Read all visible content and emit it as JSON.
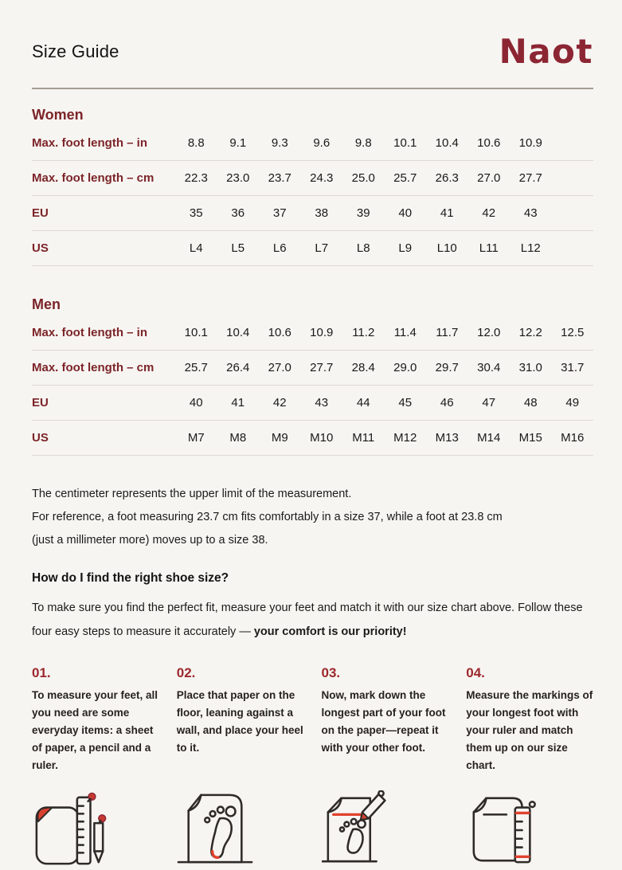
{
  "colors": {
    "background": "#f7f5f2",
    "brand_maroon": "#8c2633",
    "label_maroon": "#7c2428",
    "step_number_red": "#9c282c",
    "icon_accent_red": "#d8402f",
    "row_divider": "#ddd8d2"
  },
  "header": {
    "title": "Size Guide",
    "logo": "Naot"
  },
  "tables": [
    {
      "section": "Women",
      "rows": [
        {
          "label": "Max. foot length – in",
          "values": [
            "8.8",
            "9.1",
            "9.3",
            "9.6",
            "9.8",
            "10.1",
            "10.4",
            "10.6",
            "10.9"
          ]
        },
        {
          "label": "Max. foot length – cm",
          "values": [
            "22.3",
            "23.0",
            "23.7",
            "24.3",
            "25.0",
            "25.7",
            "26.3",
            "27.0",
            "27.7"
          ]
        },
        {
          "label": "EU",
          "values": [
            "35",
            "36",
            "37",
            "38",
            "39",
            "40",
            "41",
            "42",
            "43"
          ]
        },
        {
          "label": "US",
          "values": [
            "L4",
            "L5",
            "L6",
            "L7",
            "L8",
            "L9",
            "L10",
            "L11",
            "L12"
          ]
        }
      ]
    },
    {
      "section": "Men",
      "rows": [
        {
          "label": "Max. foot length – in",
          "values": [
            "10.1",
            "10.4",
            "10.6",
            "10.9",
            "11.2",
            "11.4",
            "11.7",
            "12.0",
            "12.2",
            "12.5"
          ]
        },
        {
          "label": "Max. foot length – cm",
          "values": [
            "25.7",
            "26.4",
            "27.0",
            "27.7",
            "28.4",
            "29.0",
            "29.7",
            "30.4",
            "31.0",
            "31.7"
          ]
        },
        {
          "label": "EU",
          "values": [
            "40",
            "41",
            "42",
            "43",
            "44",
            "45",
            "46",
            "47",
            "48",
            "49"
          ]
        },
        {
          "label": "US",
          "values": [
            "M7",
            "M8",
            "M9",
            "M10",
            "M11",
            "M12",
            "M13",
            "M14",
            "M15",
            "M16"
          ]
        }
      ]
    }
  ],
  "notes": {
    "line1": "The centimeter represents the upper limit of the measurement.",
    "line2": "For reference, a foot measuring 23.7 cm fits comfortably in a size 37, while a foot at 23.8 cm",
    "line3": "(just a millimeter more) moves up to a size 38."
  },
  "howto": {
    "heading": "How do I find the right shoe size?",
    "intro_regular": "To make sure you find the perfect fit, measure your feet and match it with our size chart above. Follow these four easy steps to measure it accurately — ",
    "intro_bold": "your comfort is our priority!"
  },
  "steps": [
    {
      "number": "01.",
      "text": "To measure your feet, all you need are some everyday items: a sheet of paper, a pencil and a ruler.",
      "icon": "paper-ruler-pencil-icon"
    },
    {
      "number": "02.",
      "text": "Place that paper on the floor, leaning against a wall, and place your heel to it.",
      "icon": "paper-footprint-wall-icon"
    },
    {
      "number": "03.",
      "text": "Now, mark down the longest part of your foot on the paper—repeat it with your other foot.",
      "icon": "paper-footprint-mark-icon"
    },
    {
      "number": "04.",
      "text": "Measure the markings of your longest foot with your ruler and match them up on our size chart.",
      "icon": "paper-ruler-measure-icon"
    }
  ]
}
